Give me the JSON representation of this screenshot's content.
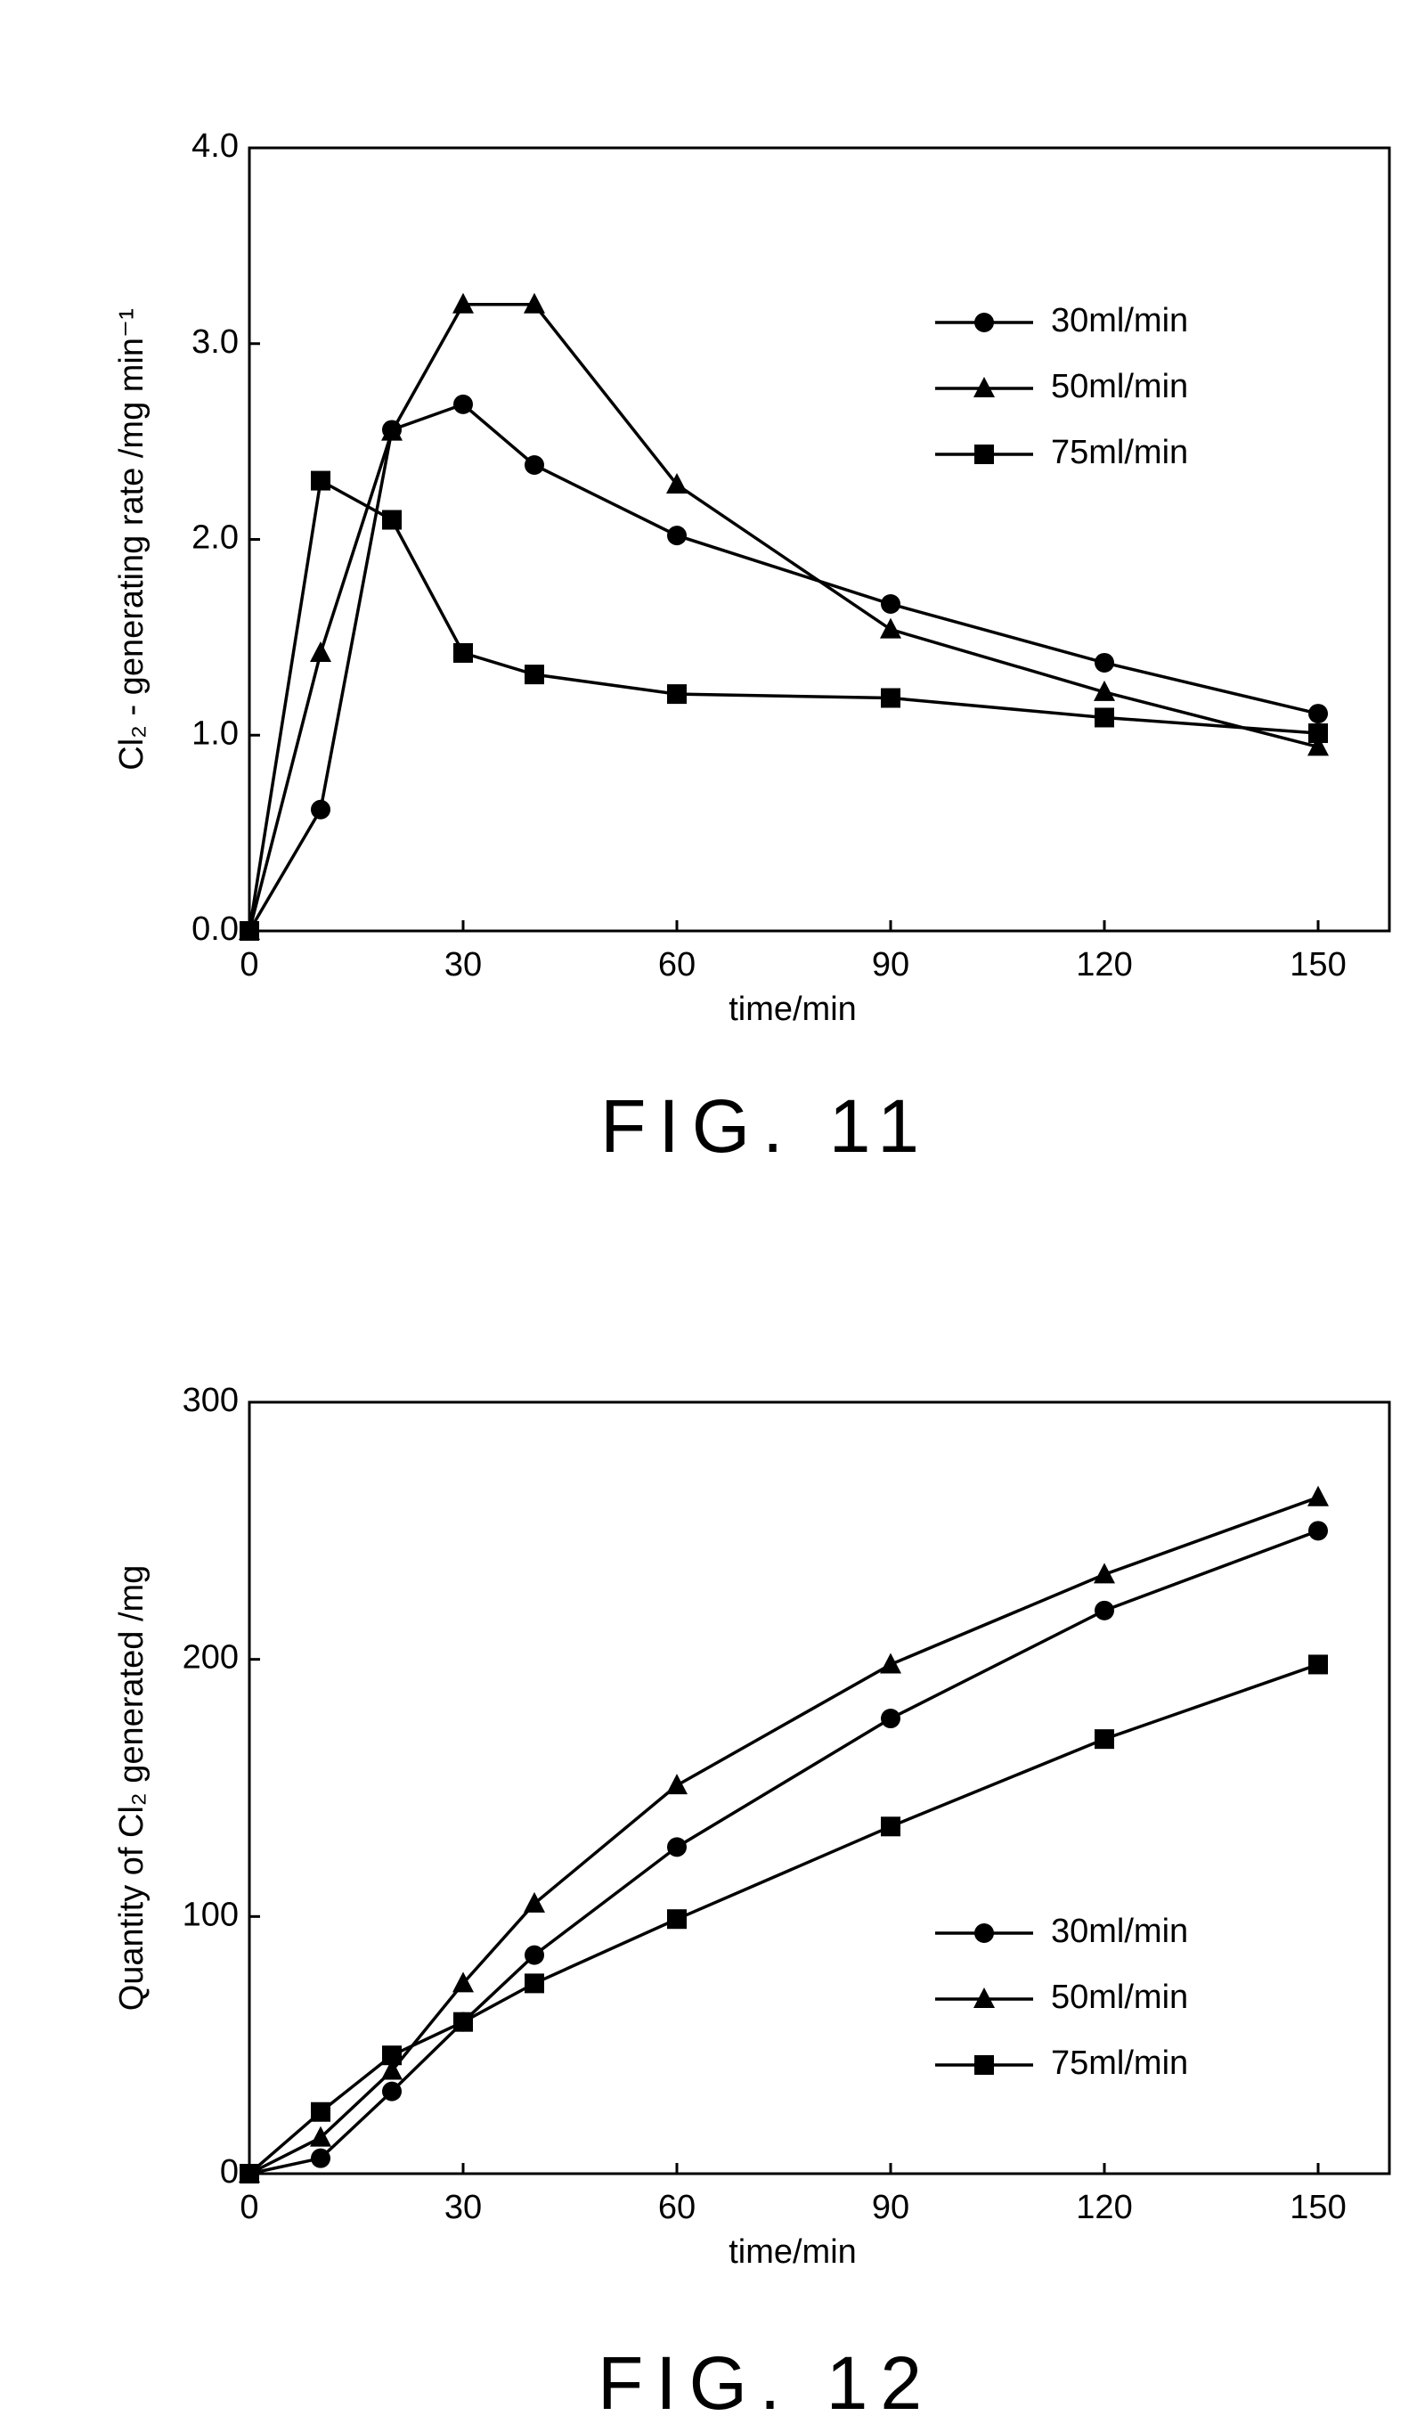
{
  "chart_data": [
    {
      "type": "line",
      "caption": "FIG. 11",
      "x_label": "time/min",
      "y_label": "Cl₂ - generating rate /mg min⁻¹",
      "x": [
        0,
        10,
        20,
        30,
        40,
        60,
        90,
        120,
        150
      ],
      "series": [
        {
          "name": "30ml/min",
          "color": "#000000",
          "marker": "circle",
          "values": [
            0,
            0.62,
            2.56,
            2.69,
            2.38,
            2.02,
            1.67,
            1.37,
            1.11
          ]
        },
        {
          "name": "50ml/min",
          "color": "#000000",
          "marker": "triangle",
          "values": [
            0,
            1.42,
            2.55,
            3.2,
            3.2,
            2.28,
            1.54,
            1.22,
            0.94
          ]
        },
        {
          "name": "75ml/min",
          "color": "#000000",
          "marker": "square",
          "values": [
            0,
            2.3,
            2.1,
            1.42,
            1.31,
            1.21,
            1.19,
            1.09,
            1.01
          ]
        }
      ],
      "xlim": [
        0,
        160
      ],
      "xticks": [
        0,
        30,
        60,
        90,
        120,
        150
      ],
      "ylim": [
        0,
        4
      ],
      "yticks": [
        {
          "value": 0,
          "label": "0.0"
        },
        {
          "value": 1,
          "label": "1.0"
        },
        {
          "value": 2,
          "label": "2.0"
        },
        {
          "value": 3,
          "label": "3.0"
        },
        {
          "value": 4,
          "label": "4.0"
        }
      ],
      "legend": "upper right"
    },
    {
      "type": "line",
      "caption": "FIG. 12",
      "x_label": "time/min",
      "y_label": "Quantity of Cl₂ generated /mg",
      "x": [
        0,
        10,
        20,
        30,
        40,
        60,
        90,
        120,
        150
      ],
      "series": [
        {
          "name": "30ml/min",
          "color": "#000000",
          "marker": "circle",
          "values": [
            0,
            6,
            32,
            59,
            85,
            127,
            177,
            219,
            250
          ]
        },
        {
          "name": "50ml/min",
          "color": "#000000",
          "marker": "triangle",
          "values": [
            0,
            14,
            40,
            74,
            105,
            151,
            198,
            233,
            263
          ]
        },
        {
          "name": "75ml/min",
          "color": "#000000",
          "marker": "square",
          "values": [
            0,
            24,
            46,
            59,
            74,
            99,
            135,
            169,
            198
          ]
        }
      ],
      "xlim": [
        0,
        160
      ],
      "xticks": [
        0,
        30,
        60,
        90,
        120,
        150
      ],
      "ylim": [
        0,
        300
      ],
      "yticks": [
        0,
        100,
        200,
        300
      ],
      "legend": "lower right"
    }
  ]
}
